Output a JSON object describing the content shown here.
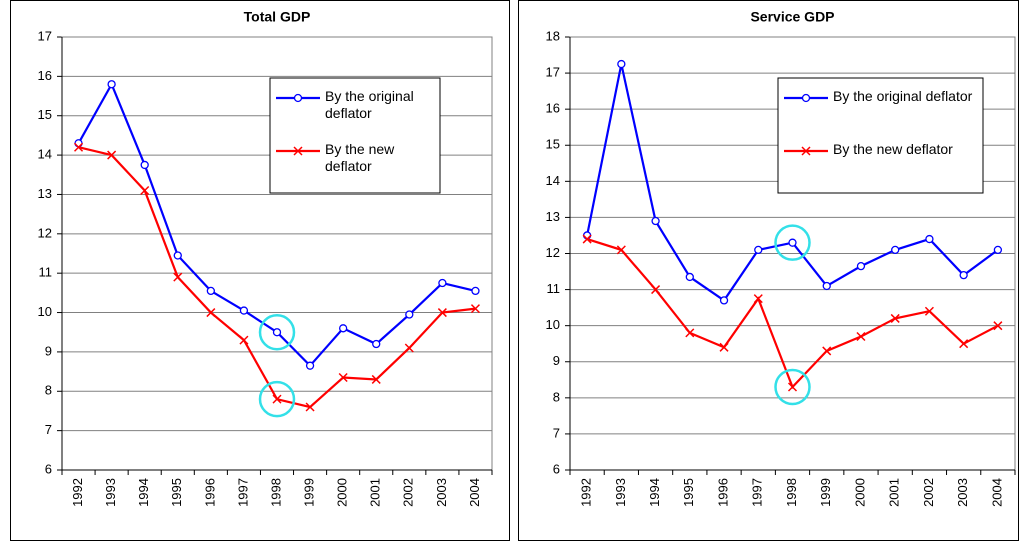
{
  "chart_data": [
    {
      "type": "line",
      "title": "Total GDP",
      "categories": [
        "1992",
        "1993",
        "1994",
        "1995",
        "1996",
        "1997",
        "1998",
        "1999",
        "2000",
        "2001",
        "2002",
        "2003",
        "2004"
      ],
      "series": [
        {
          "name": "By the original deflator",
          "color": "#0000ff",
          "marker": "circle",
          "values": [
            14.3,
            15.8,
            13.75,
            11.45,
            10.55,
            10.05,
            9.5,
            8.65,
            9.6,
            9.2,
            9.95,
            10.75,
            10.55
          ]
        },
        {
          "name": "By the new deflator",
          "color": "#ff0000",
          "marker": "x",
          "values": [
            14.2,
            14.0,
            13.1,
            10.9,
            10.0,
            9.3,
            7.8,
            7.6,
            8.35,
            8.3,
            9.1,
            10.0,
            10.1
          ]
        }
      ],
      "ylim": [
        6,
        17
      ],
      "yticks": [
        6,
        7,
        8,
        9,
        10,
        11,
        12,
        13,
        14,
        15,
        16,
        17
      ],
      "grid": true,
      "legend": "upper right"
    },
    {
      "type": "line",
      "title": "Service GDP",
      "categories": [
        "1992",
        "1993",
        "1994",
        "1995",
        "1996",
        "1997",
        "1998",
        "1999",
        "2000",
        "2001",
        "2002",
        "2003",
        "2004"
      ],
      "series": [
        {
          "name": "By the original deflator",
          "color": "#0000ff",
          "marker": "circle",
          "values": [
            12.5,
            17.25,
            12.9,
            11.35,
            10.7,
            12.1,
            12.3,
            11.1,
            11.65,
            12.1,
            12.4,
            11.4,
            12.1
          ]
        },
        {
          "name": "By the new deflator",
          "color": "#ff0000",
          "marker": "x",
          "values": [
            12.4,
            12.1,
            11.0,
            9.8,
            9.4,
            10.75,
            8.3,
            9.3,
            9.7,
            10.2,
            10.4,
            9.5,
            10.0
          ]
        }
      ],
      "ylim": [
        6,
        18
      ],
      "yticks": [
        6,
        7,
        8,
        9,
        10,
        11,
        12,
        13,
        14,
        15,
        16,
        17,
        18
      ],
      "grid": true,
      "legend": "upper right"
    }
  ]
}
